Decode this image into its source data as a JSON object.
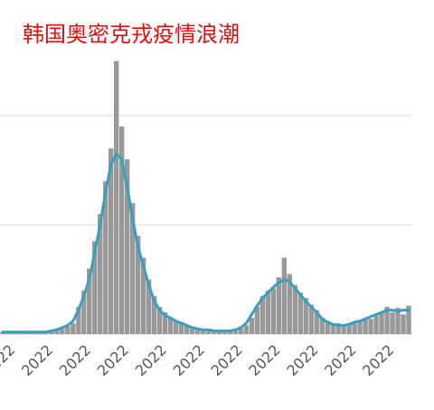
{
  "chart_data": {
    "type": "bar",
    "title": "韩国奥密克戎疫情浪潮",
    "categories": [
      "2022",
      null,
      null,
      null,
      null,
      null,
      null,
      "2022",
      null,
      null,
      null,
      null,
      null,
      null,
      "2022",
      null,
      null,
      null,
      null,
      null,
      null,
      "2022",
      null,
      null,
      null,
      null,
      null,
      null,
      "2022",
      null,
      null,
      null,
      null,
      null,
      null,
      "2022",
      null,
      null,
      null,
      null,
      null,
      null,
      "2022",
      null,
      null,
      null,
      null,
      null,
      null,
      "2022",
      null,
      null,
      null,
      null,
      null,
      null,
      "2022",
      null,
      null,
      null,
      null,
      null,
      null,
      "2022",
      null,
      null,
      null,
      null,
      null,
      null,
      "2022",
      null,
      null,
      null,
      null,
      null
    ],
    "series": [
      {
        "type": "bar",
        "color": "#999999",
        "values": [
          0.02,
          0.01,
          0.02,
          0.02,
          0.01,
          0.02,
          0.02,
          0.02,
          0.03,
          0.03,
          0.04,
          0.05,
          0.07,
          0.1,
          0.25,
          0.4,
          0.6,
          0.85,
          1.1,
          1.4,
          1.7,
          2.5,
          1.9,
          1.6,
          1.2,
          0.9,
          0.7,
          0.5,
          0.35,
          0.25,
          0.2,
          0.15,
          0.12,
          0.11,
          0.08,
          0.07,
          0.05,
          0.04,
          0.05,
          0.03,
          0.03,
          0.02,
          0.03,
          0.04,
          0.05,
          0.08,
          0.15,
          0.25,
          0.35,
          0.4,
          0.42,
          0.52,
          0.7,
          0.55,
          0.45,
          0.38,
          0.33,
          0.27,
          0.22,
          0.15,
          0.12,
          0.08,
          0.1,
          0.07,
          0.09,
          0.1,
          0.13,
          0.15,
          0.14,
          0.17,
          0.2,
          0.25,
          0.2,
          0.24,
          0.18,
          0.26
        ]
      },
      {
        "type": "line",
        "color": "#37a0c0",
        "values": [
          0.02,
          0.02,
          0.02,
          0.02,
          0.02,
          0.02,
          0.02,
          0.02,
          0.02,
          0.03,
          0.04,
          0.06,
          0.08,
          0.12,
          0.22,
          0.35,
          0.5,
          0.75,
          1.0,
          1.3,
          1.55,
          1.65,
          1.6,
          1.35,
          1.05,
          0.8,
          0.62,
          0.45,
          0.3,
          0.22,
          0.17,
          0.15,
          0.12,
          0.1,
          0.08,
          0.06,
          0.05,
          0.04,
          0.04,
          0.03,
          0.03,
          0.03,
          0.03,
          0.04,
          0.06,
          0.1,
          0.18,
          0.26,
          0.33,
          0.38,
          0.43,
          0.47,
          0.5,
          0.48,
          0.42,
          0.36,
          0.3,
          0.25,
          0.2,
          0.14,
          0.11,
          0.09,
          0.08,
          0.08,
          0.09,
          0.11,
          0.12,
          0.14,
          0.16,
          0.18,
          0.2,
          0.22,
          0.22,
          0.21,
          0.22,
          0.22
        ]
      }
    ],
    "ylim": [
      0,
      3
    ],
    "yticks": [
      1,
      2
    ],
    "grid": true
  }
}
